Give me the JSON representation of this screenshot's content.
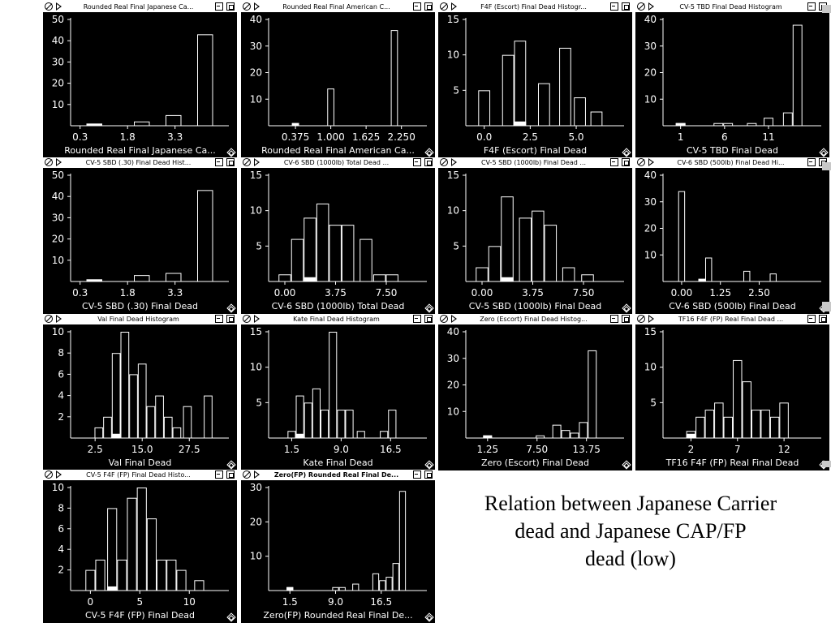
{
  "note": {
    "lines": [
      "Relation between Japanese Carrier",
      "dead and Japanese CAP/FP",
      "dead (low)"
    ]
  },
  "windows": [
    {
      "title": "Rounded Real Final Japanese Ca...",
      "caption": "Rounded Real Final Japanese Ca...",
      "active": false
    },
    {
      "title": "Rounded Real Final American C...",
      "caption": "Rounded Real Final American Ca...",
      "active": false
    },
    {
      "title": "F4F (Escort) Final Dead Histogr...",
      "caption": "F4F (Escort) Final Dead",
      "active": false
    },
    {
      "title": "CV-5 TBD Final Dead Histogram",
      "caption": "CV-5 TBD Final Dead",
      "active": false
    },
    {
      "title": "CV-5 SBD (.30) Final Dead Hist...",
      "caption": "CV-5 SBD (.30) Final Dead",
      "active": false
    },
    {
      "title": "CV-6 SBD (1000lb) Total Dead ...",
      "caption": "CV-6 SBD (1000lb) Total Dead",
      "active": false
    },
    {
      "title": "CV-5 SBD (1000lb) Final Dead ...",
      "caption": "CV-5 SBD (1000lb) Final Dead",
      "active": false
    },
    {
      "title": "CV-6 SBD (500lb) Final Dead Hi...",
      "caption": "CV-6 SBD (500lb) Final Dead",
      "active": false
    },
    {
      "title": "Val Final Dead Histogram",
      "caption": "Val Final Dead",
      "active": false
    },
    {
      "title": "Kate Final Dead Histogram",
      "caption": "Kate Final Dead",
      "active": false
    },
    {
      "title": "Zero (Escort) Final Dead Histog...",
      "caption": "Zero (Escort) Final Dead",
      "active": false
    },
    {
      "title": "TF16 F4F (FP) Real Final Dead ...",
      "caption": "TF16 F4F (FP) Real Final Dead",
      "active": false
    },
    {
      "title": "CV-5 F4F (FP)  Final Dead Histo...",
      "caption": "CV-5 F4F (FP)  Final Dead",
      "active": false
    },
    {
      "title": "Zero(FP) Rounded Real Final De...",
      "caption": "Zero(FP) Rounded Real Final De...",
      "active": true
    }
  ],
  "chart_data": [
    {
      "type": "bar",
      "title": "Rounded Real Final Japanese Ca...",
      "ylim": [
        0,
        50
      ],
      "yticks": [
        10,
        20,
        30,
        40,
        50
      ],
      "xticks": [
        "0.3",
        "1.8",
        "3.3"
      ],
      "xtick_values": [
        0.3,
        1.8,
        3.3
      ],
      "xlim": [
        0,
        5.0
      ],
      "bin_width": 0.5,
      "bins": [
        {
          "x": 0.75,
          "v": 1,
          "h": 1
        },
        {
          "x": 2.25,
          "v": 2
        },
        {
          "x": 3.25,
          "v": 5
        },
        {
          "x": 4.25,
          "v": 43
        }
      ]
    },
    {
      "type": "bar",
      "title": "Rounded Real Final American C...",
      "ylim": [
        0,
        40
      ],
      "yticks": [
        10,
        20,
        30,
        40
      ],
      "xticks": [
        "0.375",
        "1.000",
        "1.625",
        "2.250"
      ],
      "xtick_values": [
        0.375,
        1.0,
        1.625,
        2.25
      ],
      "xlim": [
        -0.1,
        2.7
      ],
      "bin_width": 0.125,
      "bins": [
        {
          "x": 0.375,
          "v": 1,
          "h": 1
        },
        {
          "x": 1.0,
          "v": 14
        },
        {
          "x": 2.125,
          "v": 36
        }
      ]
    },
    {
      "type": "bar",
      "title": "F4F (Escort) Final Dead Histogr...",
      "ylim": [
        0,
        15
      ],
      "yticks": [
        5,
        10,
        15
      ],
      "xticks": [
        "0.0",
        "2.5",
        "5.0"
      ],
      "xtick_values": [
        0,
        2.5,
        5.0
      ],
      "xlim": [
        -1,
        7.6
      ],
      "bin_width": 0.65,
      "bins": [
        {
          "x": 0,
          "v": 5
        },
        {
          "x": 1.3,
          "v": 10
        },
        {
          "x": 1.95,
          "v": 12,
          "h": 1
        },
        {
          "x": 3.25,
          "v": 6
        },
        {
          "x": 4.4,
          "v": 11
        },
        {
          "x": 5.2,
          "v": 4
        },
        {
          "x": 6.1,
          "v": 2
        }
      ]
    },
    {
      "type": "bar",
      "title": "CV-5 TBD Final Dead Histogram",
      "ylim": [
        0,
        40
      ],
      "yticks": [
        10,
        20,
        30,
        40
      ],
      "xticks": [
        "1",
        "6",
        "11"
      ],
      "xtick_values": [
        1,
        6,
        11
      ],
      "xlim": [
        -1,
        17
      ],
      "bin_width": 1.1,
      "bins": [
        {
          "x": 1,
          "v": 1,
          "h": 1
        },
        {
          "x": 5.3,
          "v": 1
        },
        {
          "x": 6.4,
          "v": 1
        },
        {
          "x": 9.1,
          "v": 1
        },
        {
          "x": 11.0,
          "v": 3
        },
        {
          "x": 13.2,
          "v": 5
        },
        {
          "x": 14.3,
          "v": 38
        }
      ]
    },
    {
      "type": "bar",
      "title": "CV-5 SBD (.30) Final Dead Hist...",
      "ylim": [
        0,
        50
      ],
      "yticks": [
        10,
        20,
        30,
        40,
        50
      ],
      "xticks": [
        "0.3",
        "1.8",
        "3.3"
      ],
      "xtick_values": [
        0.3,
        1.8,
        3.3
      ],
      "xlim": [
        0,
        5.0
      ],
      "bin_width": 0.5,
      "bins": [
        {
          "x": 0.75,
          "v": 1,
          "h": 1
        },
        {
          "x": 2.25,
          "v": 3
        },
        {
          "x": 3.25,
          "v": 4
        },
        {
          "x": 4.25,
          "v": 43
        }
      ]
    },
    {
      "type": "bar",
      "title": "CV-6 SBD (1000lb) Total Dead ...",
      "ylim": [
        0,
        15
      ],
      "yticks": [
        5,
        10,
        15
      ],
      "xticks": [
        "0.00",
        "3.75",
        "7.50"
      ],
      "xtick_values": [
        0,
        3.75,
        7.5
      ],
      "xlim": [
        -1.2,
        10.5
      ],
      "bin_width": 0.93,
      "bins": [
        {
          "x": 0,
          "v": 1
        },
        {
          "x": 0.93,
          "v": 6
        },
        {
          "x": 1.86,
          "v": 9,
          "h": 1
        },
        {
          "x": 2.8,
          "v": 11
        },
        {
          "x": 3.73,
          "v": 8
        },
        {
          "x": 4.66,
          "v": 8
        },
        {
          "x": 6.0,
          "v": 6
        },
        {
          "x": 7.0,
          "v": 1
        },
        {
          "x": 7.93,
          "v": 1
        }
      ]
    },
    {
      "type": "bar",
      "title": "CV-5 SBD (1000lb) Final Dead ...",
      "ylim": [
        0,
        15
      ],
      "yticks": [
        5,
        10,
        15
      ],
      "xticks": [
        "0.00",
        "3.75",
        "7.50"
      ],
      "xtick_values": [
        0,
        3.75,
        7.5
      ],
      "xlim": [
        -1.2,
        10.5
      ],
      "bin_width": 0.93,
      "bins": [
        {
          "x": 0,
          "v": 2
        },
        {
          "x": 0.93,
          "v": 5
        },
        {
          "x": 1.86,
          "v": 12,
          "h": 1
        },
        {
          "x": 3.2,
          "v": 9
        },
        {
          "x": 4.13,
          "v": 10
        },
        {
          "x": 5.06,
          "v": 8
        },
        {
          "x": 6.4,
          "v": 2
        },
        {
          "x": 7.8,
          "v": 1
        }
      ]
    },
    {
      "type": "bar",
      "title": "CV-6 SBD (500lb) Final Dead Hi...",
      "ylim": [
        0,
        40
      ],
      "yticks": [
        10,
        20,
        30,
        40
      ],
      "xticks": [
        "0.00",
        "1.25",
        "2.50"
      ],
      "xtick_values": [
        0,
        1.25,
        2.5
      ],
      "xlim": [
        -0.6,
        4.5
      ],
      "bin_width": 0.22,
      "bins": [
        {
          "x": 0,
          "v": 34
        },
        {
          "x": 0.65,
          "v": 1,
          "h": 1
        },
        {
          "x": 0.87,
          "v": 9
        },
        {
          "x": 2.1,
          "v": 4
        },
        {
          "x": 2.95,
          "v": 3
        }
      ]
    },
    {
      "type": "bar",
      "title": "Val Final Dead Histogram",
      "ylim": [
        0,
        10
      ],
      "yticks": [
        2,
        4,
        6,
        8,
        10
      ],
      "xticks": [
        "2.5",
        "15.0",
        "27.5"
      ],
      "xtick_values": [
        2.5,
        15,
        27.5
      ],
      "xlim": [
        -4,
        38
      ],
      "bin_width": 2.3,
      "bins": [
        {
          "x": 3.5,
          "v": 1
        },
        {
          "x": 5.8,
          "v": 2
        },
        {
          "x": 8.1,
          "v": 8,
          "h": 1
        },
        {
          "x": 10.4,
          "v": 10
        },
        {
          "x": 12.7,
          "v": 6
        },
        {
          "x": 15.0,
          "v": 7
        },
        {
          "x": 17.3,
          "v": 3
        },
        {
          "x": 19.6,
          "v": 4
        },
        {
          "x": 21.9,
          "v": 2
        },
        {
          "x": 24.2,
          "v": 1
        },
        {
          "x": 27.0,
          "v": 3
        },
        {
          "x": 32.5,
          "v": 4
        }
      ]
    },
    {
      "type": "bar",
      "title": "Kate Final Dead Histogram",
      "ylim": [
        0,
        15
      ],
      "yticks": [
        5,
        10,
        15
      ],
      "xticks": [
        "1.5",
        "9.0",
        "16.5"
      ],
      "xtick_values": [
        1.5,
        9,
        16.5
      ],
      "xlim": [
        -2,
        22
      ],
      "bin_width": 1.25,
      "bins": [
        {
          "x": 1.5,
          "v": 1
        },
        {
          "x": 2.75,
          "v": 6,
          "h": 1
        },
        {
          "x": 4.0,
          "v": 5
        },
        {
          "x": 5.25,
          "v": 7
        },
        {
          "x": 6.5,
          "v": 4
        },
        {
          "x": 7.75,
          "v": 15
        },
        {
          "x": 9.0,
          "v": 4
        },
        {
          "x": 10.25,
          "v": 4
        },
        {
          "x": 12.0,
          "v": 1
        },
        {
          "x": 15.5,
          "v": 1
        },
        {
          "x": 16.75,
          "v": 4
        }
      ]
    },
    {
      "type": "bar",
      "title": "Zero (Escort) Final Dead Histog...",
      "ylim": [
        0,
        40
      ],
      "yticks": [
        10,
        20,
        30,
        40
      ],
      "xticks": [
        "1.25",
        "7.50",
        "13.75"
      ],
      "xtick_values": [
        1.25,
        7.5,
        13.75
      ],
      "xlim": [
        -1.5,
        18.5
      ],
      "bin_width": 1.12,
      "bins": [
        {
          "x": 1.25,
          "v": 1,
          "h": 1
        },
        {
          "x": 7.9,
          "v": 1
        },
        {
          "x": 10.0,
          "v": 5
        },
        {
          "x": 11.12,
          "v": 3
        },
        {
          "x": 12.24,
          "v": 2
        },
        {
          "x": 13.36,
          "v": 6
        },
        {
          "x": 14.48,
          "v": 33
        }
      ]
    },
    {
      "type": "bar",
      "title": "TF16 F4F (FP) Real Final Dead ...",
      "ylim": [
        0,
        15
      ],
      "yticks": [
        5,
        10,
        15
      ],
      "xticks": [
        "2",
        "7",
        "12"
      ],
      "xtick_values": [
        2,
        7,
        12
      ],
      "xlim": [
        -1,
        16
      ],
      "bin_width": 1,
      "bins": [
        {
          "x": 2,
          "v": 1,
          "h": 1
        },
        {
          "x": 3,
          "v": 3
        },
        {
          "x": 4,
          "v": 4
        },
        {
          "x": 5,
          "v": 5
        },
        {
          "x": 6,
          "v": 3
        },
        {
          "x": 7,
          "v": 11
        },
        {
          "x": 8,
          "v": 8
        },
        {
          "x": 9,
          "v": 4
        },
        {
          "x": 10,
          "v": 4
        },
        {
          "x": 11,
          "v": 3
        },
        {
          "x": 12,
          "v": 5
        }
      ]
    },
    {
      "type": "bar",
      "title": "CV-5 F4F (FP)  Final Dead Histo...",
      "ylim": [
        0,
        10
      ],
      "yticks": [
        2,
        4,
        6,
        8,
        10
      ],
      "xticks": [
        "0",
        "5",
        "10"
      ],
      "xtick_values": [
        0,
        5,
        10
      ],
      "xlim": [
        -2,
        14
      ],
      "bin_width": 1,
      "bins": [
        {
          "x": 0,
          "v": 2
        },
        {
          "x": 1,
          "v": 3
        },
        {
          "x": 2.2,
          "v": 8,
          "h": 1
        },
        {
          "x": 3.2,
          "v": 3
        },
        {
          "x": 4.2,
          "v": 9
        },
        {
          "x": 5.2,
          "v": 10
        },
        {
          "x": 6.2,
          "v": 7
        },
        {
          "x": 7.2,
          "v": 3
        },
        {
          "x": 8.2,
          "v": 3
        },
        {
          "x": 9.2,
          "v": 2
        },
        {
          "x": 11.0,
          "v": 1
        }
      ]
    },
    {
      "type": "bar",
      "title": "Zero(FP) Rounded Real Final De...",
      "ylim": [
        0,
        30
      ],
      "yticks": [
        10,
        20,
        30
      ],
      "xticks": [
        "1.5",
        "9.0",
        "16.5"
      ],
      "xtick_values": [
        1.5,
        9,
        16.5
      ],
      "xlim": [
        -2,
        24
      ],
      "bin_width": 1.1,
      "bins": [
        {
          "x": 1.5,
          "v": 1,
          "h": 1
        },
        {
          "x": 9.0,
          "v": 1
        },
        {
          "x": 10.1,
          "v": 1
        },
        {
          "x": 12.3,
          "v": 2
        },
        {
          "x": 15.6,
          "v": 5
        },
        {
          "x": 16.7,
          "v": 3
        },
        {
          "x": 17.8,
          "v": 4
        },
        {
          "x": 18.9,
          "v": 8
        },
        {
          "x": 20.0,
          "v": 29
        }
      ]
    }
  ]
}
